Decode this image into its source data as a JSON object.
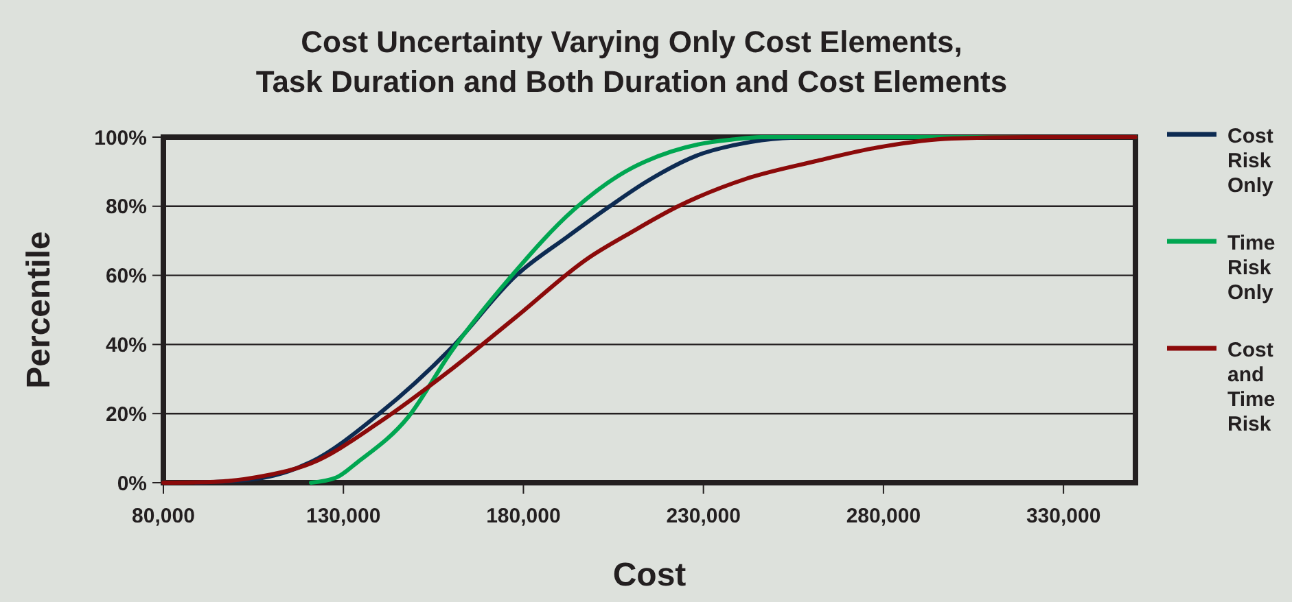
{
  "chart_data": {
    "type": "line",
    "title": "Cost Uncertainty Varying Only Cost Elements,\nTask Duration and Both Duration and Cost Elements",
    "xlabel": "Cost",
    "ylabel": "Percentile",
    "xlim": [
      80000,
      350000
    ],
    "xticks": [
      {
        "value": 80000,
        "label": "80,000"
      },
      {
        "value": 130000,
        "label": "130,000"
      },
      {
        "value": 180000,
        "label": "180,000"
      },
      {
        "value": 230000,
        "label": "230,000"
      },
      {
        "value": 280000,
        "label": "280,000"
      },
      {
        "value": 330000,
        "label": "330,000"
      }
    ],
    "ylim": [
      0,
      100
    ],
    "yticks": [
      {
        "value": 0,
        "label": "0%"
      },
      {
        "value": 20,
        "label": "20%"
      },
      {
        "value": 40,
        "label": "40%"
      },
      {
        "value": 60,
        "label": "60%"
      },
      {
        "value": 80,
        "label": "80%"
      },
      {
        "value": 100,
        "label": "100%"
      }
    ],
    "grid": "y",
    "legend": "right",
    "marker": "none",
    "line_style": "solid",
    "series": [
      {
        "name": "Cost Risk Only",
        "color": "#0d2b52",
        "x": [
          89000,
          105000,
          121000,
          140000,
          160000,
          178000,
          192000,
          204000,
          214000,
          229000,
          240000,
          252000,
          261000,
          300000,
          350000
        ],
        "values": [
          0,
          1,
          6,
          20,
          39,
          60,
          71,
          80,
          87,
          95,
          98,
          99.7,
          100,
          100,
          100
        ]
      },
      {
        "name": "Time Risk Only",
        "color": "#00a651",
        "x": [
          121000,
          128000,
          134000,
          148000,
          160000,
          176000,
          194000,
          210000,
          214000,
          229000,
          238000,
          246000,
          260000,
          300000,
          350000
        ],
        "values": [
          0,
          1.5,
          6,
          19,
          38,
          59,
          79,
          91,
          93,
          98,
          99.3,
          100,
          100,
          100,
          100
        ]
      },
      {
        "name": "Cost and Time Risk",
        "color": "#8b0a0a",
        "x": [
          80000,
          89000,
          98000,
          108000,
          121000,
          140000,
          159000,
          178000,
          198000,
          210000,
          223000,
          242000,
          261000,
          280000,
          299000,
          320000,
          350000
        ],
        "values": [
          0,
          0.1,
          0.5,
          2,
          5.6,
          17.5,
          32,
          48,
          65,
          72.5,
          80,
          88,
          93,
          97.3,
          99.6,
          100,
          100
        ]
      }
    ]
  }
}
